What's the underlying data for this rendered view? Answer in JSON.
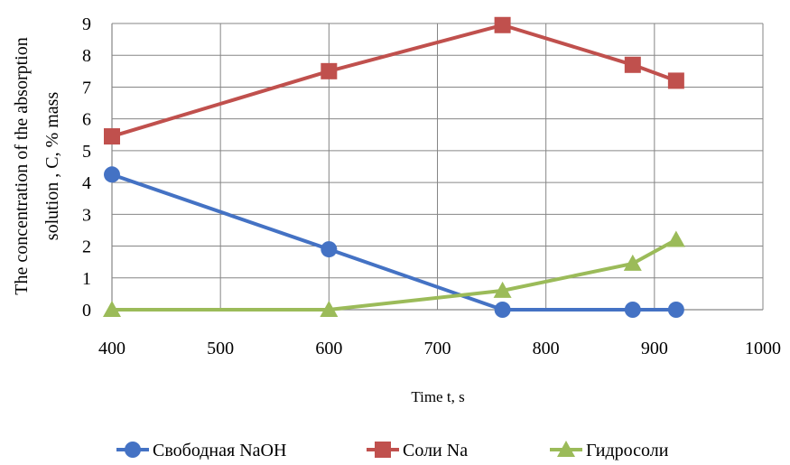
{
  "chart_data": {
    "type": "line",
    "title": "",
    "xlabel": "Time t, s",
    "ylabel_lines": [
      "The concentration of the absorption",
      "solution , C, % mass"
    ],
    "xlim": [
      400,
      1000
    ],
    "ylim": [
      0,
      9
    ],
    "x_ticks": [
      400,
      500,
      600,
      700,
      800,
      900,
      1000
    ],
    "y_ticks": [
      0,
      1,
      2,
      3,
      4,
      5,
      6,
      7,
      8,
      9
    ],
    "grid": true,
    "legend_position": "bottom",
    "series": [
      {
        "name": "Свободная NaOH",
        "color": "#4472C4",
        "marker": "circle",
        "x": [
          400,
          600,
          760,
          880,
          920
        ],
        "y": [
          4.25,
          1.9,
          0,
          0,
          0
        ]
      },
      {
        "name": "Соли Na",
        "color": "#C0504D",
        "marker": "square",
        "x": [
          400,
          600,
          760,
          880,
          920
        ],
        "y": [
          5.45,
          7.5,
          8.95,
          7.7,
          7.2
        ]
      },
      {
        "name": "Гидросоли",
        "color": "#9BBB59",
        "marker": "triangle",
        "x": [
          400,
          600,
          760,
          880,
          920
        ],
        "y": [
          0,
          0,
          0.6,
          1.45,
          2.2
        ]
      }
    ]
  }
}
